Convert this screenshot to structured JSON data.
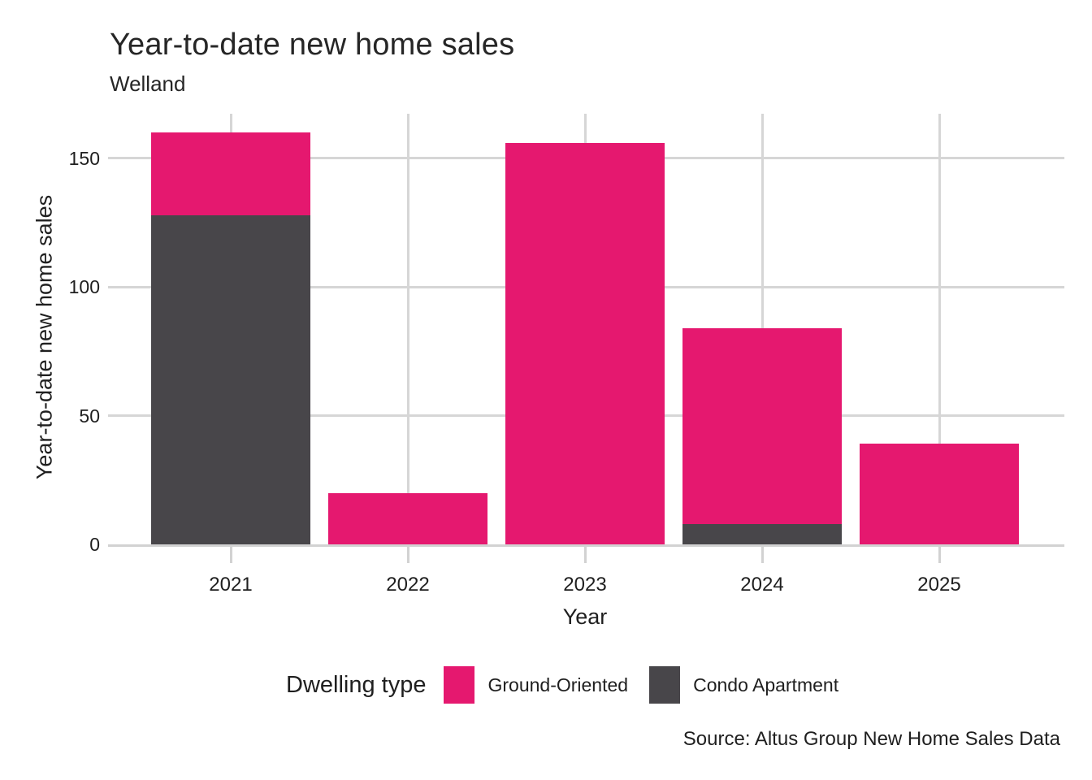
{
  "header": {
    "title": "Year-to-date new home sales",
    "subtitle": "Welland"
  },
  "axes": {
    "x_title": "Year",
    "y_title": "Year-to-date new home sales"
  },
  "legend": {
    "title": "Dwelling type",
    "items": [
      {
        "label": "Ground-Oriented",
        "color": "#E5186F"
      },
      {
        "label": "Condo Apartment",
        "color": "#48464A"
      }
    ]
  },
  "source": "Source: Altus Group New Home Sales Data",
  "colors": {
    "ground_oriented": "#E5186F",
    "condo_apartment": "#48464A",
    "gridline": "#D6D6D6"
  },
  "chart_data": {
    "type": "bar",
    "stacked": true,
    "title": "Year-to-date new home sales",
    "subtitle": "Welland",
    "xlabel": "Year",
    "ylabel": "Year-to-date new home sales",
    "categories": [
      "2021",
      "2022",
      "2023",
      "2024",
      "2025"
    ],
    "series": [
      {
        "name": "Ground-Oriented",
        "color": "#E5186F",
        "values": [
          32,
          20,
          156,
          76,
          39
        ]
      },
      {
        "name": "Condo Apartment",
        "color": "#48464A",
        "values": [
          128,
          0,
          0,
          8,
          0
        ]
      }
    ],
    "totals": [
      160,
      20,
      156,
      84,
      39
    ],
    "yticks": [
      0,
      50,
      100,
      150
    ],
    "ylim": [
      0,
      167
    ],
    "grid": true,
    "legend_position": "bottom"
  }
}
